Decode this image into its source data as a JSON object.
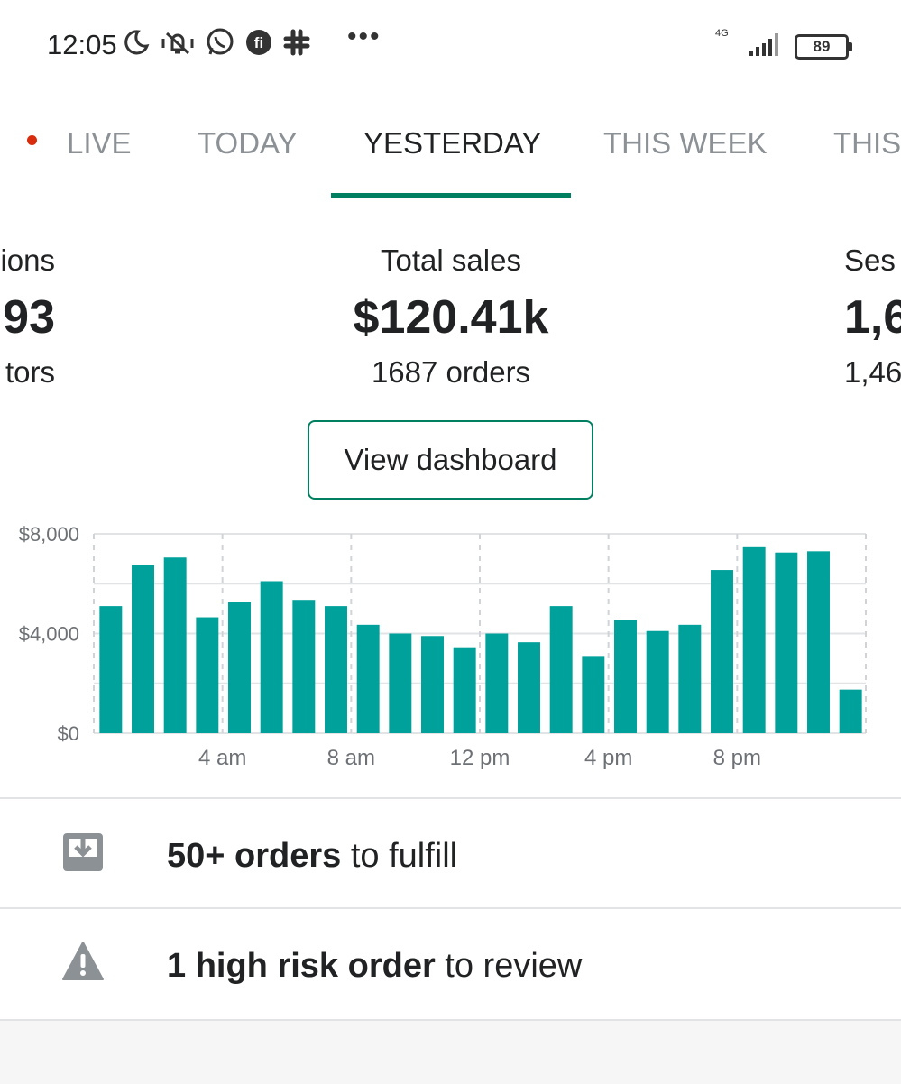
{
  "status_bar": {
    "time": "12:05",
    "more": "•••",
    "network": "4G",
    "battery": "89",
    "icons": [
      "moon-icon",
      "mute-vibrate-icon",
      "whatsapp-icon",
      "app-badge-icon",
      "slack-icon"
    ]
  },
  "tabs": [
    {
      "label": "LIVE",
      "live": true
    },
    {
      "label": "TODAY"
    },
    {
      "label": "YESTERDAY",
      "active": true
    },
    {
      "label": "THIS WEEK"
    },
    {
      "label": "THIS"
    }
  ],
  "metrics": {
    "left": {
      "label": "ions",
      "value": "93",
      "sub": "tors"
    },
    "center": {
      "label": "Total sales",
      "value": "$120.41k",
      "sub": "1687 orders"
    },
    "right": {
      "label": "Ses",
      "value": "1,6",
      "sub": "1,46"
    }
  },
  "view_dashboard": "View dashboard",
  "colors": {
    "accent": "#008060",
    "bar": "#00a19a",
    "live_dot": "#d82c0d"
  },
  "chart_data": {
    "type": "bar",
    "x_ticks": [
      "4 am",
      "8 am",
      "12 pm",
      "4 pm",
      "8 pm"
    ],
    "y_ticks": [
      "$8,000",
      "$4,000",
      "$0"
    ],
    "ylim": [
      0,
      8000
    ],
    "values": [
      5100,
      6750,
      7050,
      4650,
      5250,
      6100,
      5350,
      5100,
      4350,
      4000,
      3900,
      3450,
      4000,
      3650,
      5100,
      3100,
      4550,
      4100,
      4350,
      6550,
      7500,
      7250,
      7300,
      1750
    ]
  },
  "tasks": [
    {
      "bold": "50+ orders",
      "rest": " to fulfill",
      "icon": "inbox-download-icon"
    },
    {
      "bold": "1 high risk order",
      "rest": " to review",
      "icon": "warning-icon"
    }
  ]
}
